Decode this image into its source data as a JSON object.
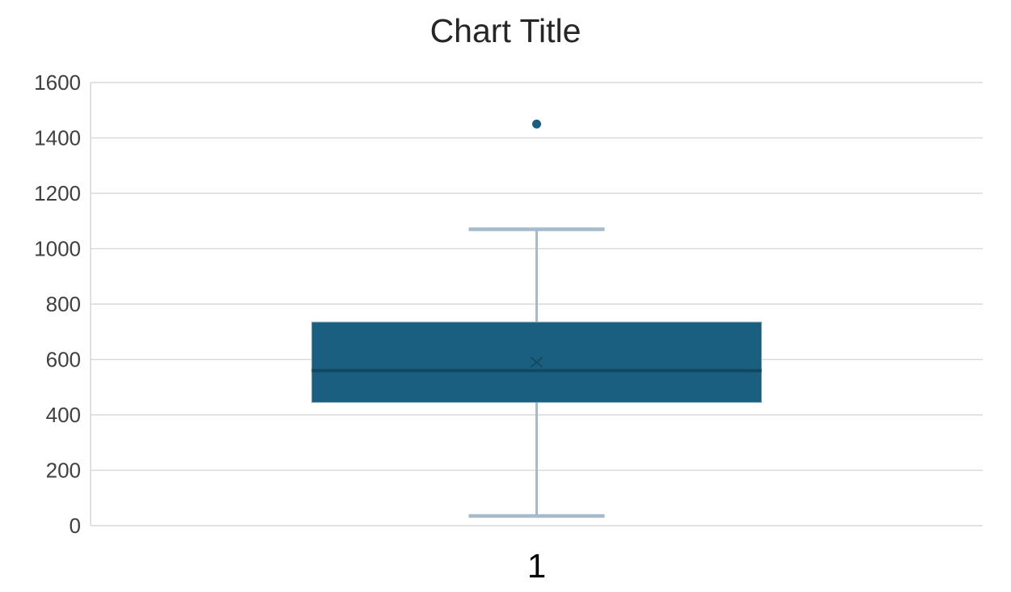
{
  "title": "Chart Title",
  "colors": {
    "box_fill": "#1A5F80",
    "box_border": "#7FA6BB",
    "median_line": "#12485F",
    "mean_marker": "#15475D",
    "whisker": "#A3BBCB",
    "outlier_fill": "#1A5F80",
    "gridline": "#D9D9D9",
    "axis_line": "#D9D9D9",
    "ytick_label": "#404040",
    "category_label": "#000000",
    "title_color": "#262626",
    "background": "#FFFFFF"
  },
  "chart_data": {
    "type": "boxplot",
    "title": "Chart Title",
    "categories": [
      "1"
    ],
    "series": [
      {
        "name": "1",
        "min": 35,
        "q1": 445,
        "median": 560,
        "mean": 590,
        "q3": 735,
        "max": 1070,
        "outliers": [
          1450
        ]
      }
    ],
    "xlabel": "",
    "ylabel": "",
    "ylim": [
      0,
      1600
    ],
    "yticks": [
      0,
      200,
      400,
      600,
      800,
      1000,
      1200,
      1400,
      1600
    ],
    "grid": true,
    "legend": false
  }
}
